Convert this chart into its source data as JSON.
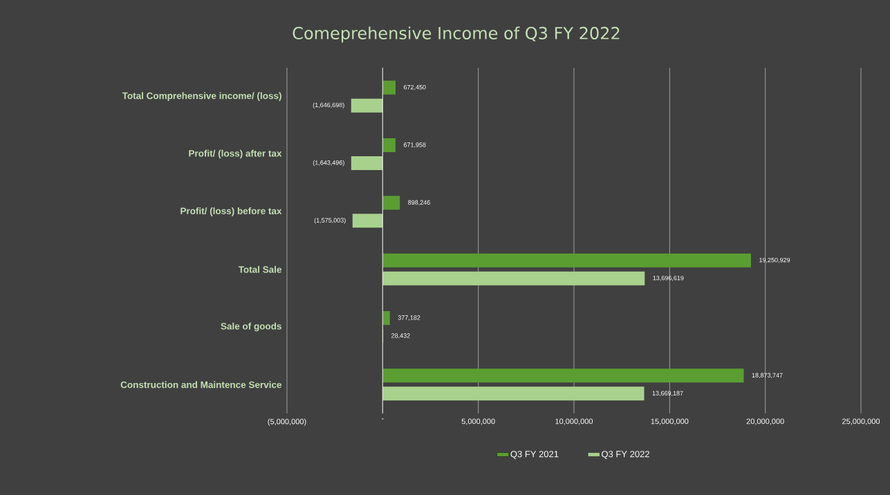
{
  "chart_data": {
    "type": "bar",
    "orientation": "horizontal",
    "title": "Comeprehensive Income of Q3 FY 2022",
    "categories": [
      "Total Comprehensive income/ (loss)",
      "Profit/ (loss) after tax",
      "Profit/ (loss) before tax",
      "Total Sale",
      "Sale of goods",
      "Construction and Maintence Service"
    ],
    "series": [
      {
        "name": "Q3 FY 2021",
        "color": "#5a9e32",
        "values": [
          672450,
          671958,
          898246,
          19250929,
          377182,
          18873747
        ],
        "value_labels": [
          "672,450",
          "671,958",
          "898,246",
          "19,250,929",
          "377,182",
          "18,873,747"
        ]
      },
      {
        "name": "Q3 FY 2022",
        "color": "#a9d18e",
        "values": [
          -1646698,
          -1643496,
          -1575003,
          13696619,
          28432,
          13669187
        ],
        "value_labels": [
          "(1,646,698)",
          "(1,643,496)",
          "(1,575,003)",
          "13,696,619",
          "28,432",
          "13,669,187"
        ]
      }
    ],
    "xlim": [
      -5000000,
      25000000
    ],
    "xticks": [
      {
        "value": -5000000,
        "label": "(5,000,000)"
      },
      {
        "value": 0,
        "label": "-"
      },
      {
        "value": 5000000,
        "label": "5,000,000"
      },
      {
        "value": 10000000,
        "label": "10,000,000"
      },
      {
        "value": 15000000,
        "label": "15,000,000"
      },
      {
        "value": 20000000,
        "label": "20,000,000"
      },
      {
        "value": 25000000,
        "label": "25,000,000"
      }
    ],
    "grid": "x",
    "legend": "bottom"
  }
}
